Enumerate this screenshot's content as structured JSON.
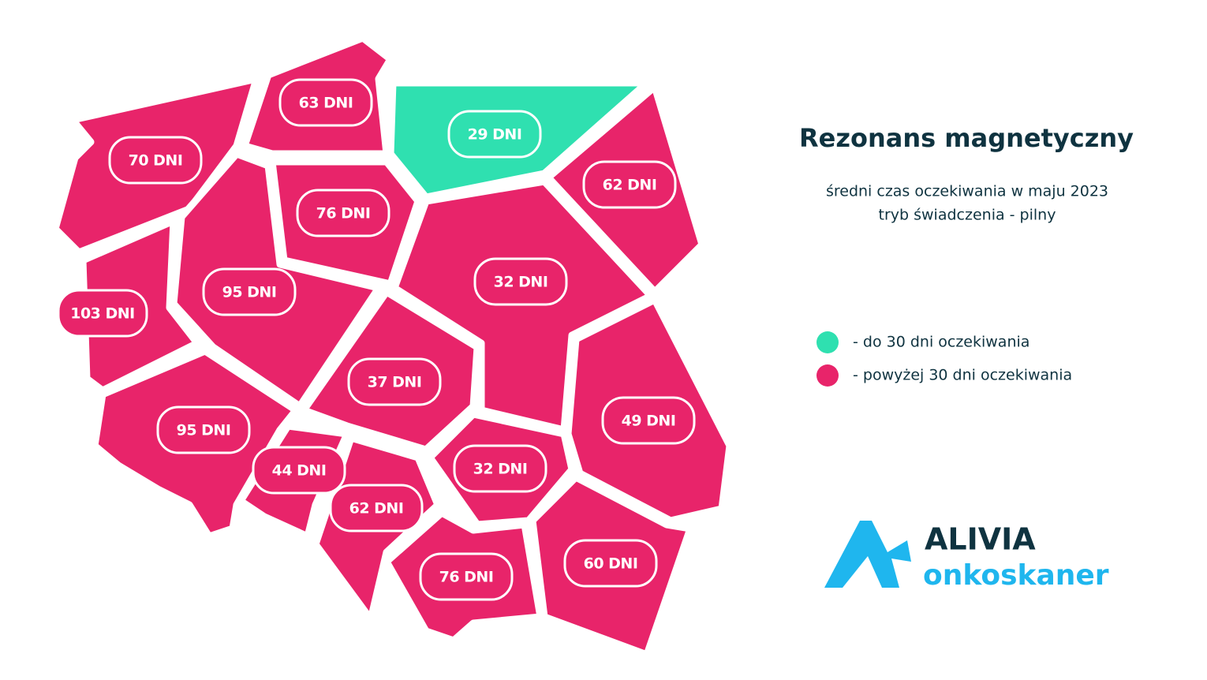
{
  "title": "Rezonans magnetyczny",
  "subtitle": [
    "średni czas oczekiwania w maju 2023",
    "tryb świadczenia - pilny"
  ],
  "legend": [
    {
      "color": "#2fe0b0",
      "label": "- do 30 dni oczekiwania"
    },
    {
      "color": "#e8246a",
      "label": "- powyżej 30 dni oczekiwania"
    }
  ],
  "regions": [
    {
      "label": "70 DNI",
      "color": "#e8246a"
    },
    {
      "label": "63 DNI",
      "color": "#e8246a"
    },
    {
      "label": "29 DNI",
      "color": "#2fe0b0"
    },
    {
      "label": "62 DNI",
      "color": "#e8246a"
    },
    {
      "label": "76 DNI",
      "color": "#e8246a"
    },
    {
      "label": "95 DNI",
      "color": "#e8246a"
    },
    {
      "label": "103 DNI",
      "color": "#e8246a"
    },
    {
      "label": "32 DNI",
      "color": "#e8246a"
    },
    {
      "label": "37 DNI",
      "color": "#e8246a"
    },
    {
      "label": "49 DNI",
      "color": "#e8246a"
    },
    {
      "label": "95 DNI",
      "color": "#e8246a"
    },
    {
      "label": "44 DNI",
      "color": "#e8246a"
    },
    {
      "label": "62 DNI",
      "color": "#e8246a"
    },
    {
      "label": "32 DNI",
      "color": "#e8246a"
    },
    {
      "label": "76 DNI",
      "color": "#e8246a"
    },
    {
      "label": "60 DNI",
      "color": "#e8246a"
    }
  ],
  "logo": {
    "name": "ALIVIA",
    "product": "onkoskaner"
  }
}
